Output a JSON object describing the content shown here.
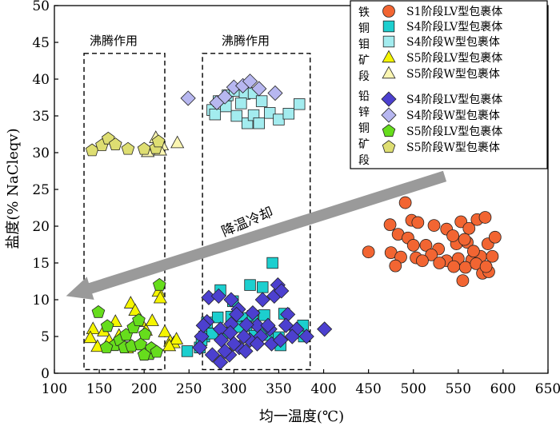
{
  "chart_data": {
    "type": "scatter",
    "xlabel": "均一温度(℃)",
    "ylabel": "盐度(% NaCleqv)",
    "xlim": [
      100,
      650
    ],
    "ylim": [
      0,
      50
    ],
    "xticks": [
      100,
      150,
      200,
      250,
      300,
      350,
      400,
      450,
      500,
      550,
      600,
      650
    ],
    "yticks": [
      0,
      5,
      10,
      15,
      20,
      25,
      30,
      35,
      40,
      45,
      50
    ],
    "legend_position": "top-right",
    "legend_groups": [
      {
        "label": "铁铜钼矿段",
        "chars": [
          "铁",
          "铜",
          "钼",
          "矿",
          "段"
        ]
      },
      {
        "label": "铅锌铜矿段",
        "chars": [
          "铅",
          "锌",
          "铜",
          "矿",
          "段"
        ]
      }
    ],
    "annotations": {
      "boiling_1": "沸腾作用",
      "boiling_2": "沸腾作用",
      "arrow_label": "降温冷却"
    },
    "boxes": [
      {
        "x": [
          133,
          223
        ],
        "y": [
          0.5,
          43.5
        ]
      },
      {
        "x": [
          265,
          385
        ],
        "y": [
          0.5,
          43.5
        ]
      }
    ],
    "arrow": {
      "from": [
        535,
        26.8
      ],
      "to": [
        113,
        10.5
      ]
    },
    "series": [
      {
        "name": "S1阶段LV型包裹体",
        "group": 0,
        "marker": "circle",
        "color": "#f26532",
        "points": [
          [
            491,
            23.2
          ],
          [
            498,
            20.8
          ],
          [
            474,
            20.2
          ],
          [
            483,
            18.9
          ],
          [
            494,
            18.4
          ],
          [
            505,
            20.5
          ],
          [
            523,
            20.1
          ],
          [
            537,
            19.6
          ],
          [
            553,
            20.6
          ],
          [
            562,
            19.7
          ],
          [
            571,
            20.9
          ],
          [
            580,
            21.2
          ],
          [
            500,
            17.4
          ],
          [
            514,
            17.4
          ],
          [
            528,
            16.9
          ],
          [
            548,
            17.6
          ],
          [
            560,
            17.8
          ],
          [
            583,
            17.6
          ],
          [
            591,
            18.5
          ],
          [
            475,
            16.4
          ],
          [
            450,
            16.5
          ],
          [
            486,
            15.8
          ],
          [
            503,
            15.7
          ],
          [
            520,
            16.1
          ],
          [
            537,
            15.3
          ],
          [
            550,
            15.6
          ],
          [
            565,
            15.4
          ],
          [
            575,
            15.9
          ],
          [
            588,
            15.9
          ],
          [
            510,
            15.3
          ],
          [
            529,
            15.0
          ],
          [
            545,
            14.5
          ],
          [
            558,
            14.4
          ],
          [
            570,
            14.9
          ],
          [
            480,
            14.6
          ],
          [
            555,
            12.6
          ],
          [
            577,
            13.6
          ],
          [
            584,
            13.8
          ],
          [
            567,
            16.6
          ],
          [
            544,
            18.7
          ],
          [
            557,
            18.2
          ],
          [
            581,
            14.5
          ]
        ]
      },
      {
        "name": "S4阶段LV型包裹体",
        "group": 0,
        "marker": "square",
        "color": "#1ccfcf",
        "points": [
          [
            248,
            3.0
          ],
          [
            262,
            3.5
          ],
          [
            267,
            5.0
          ],
          [
            270,
            6.9
          ],
          [
            282,
            7.6
          ],
          [
            297,
            7.7
          ],
          [
            310,
            7.5
          ],
          [
            321,
            7.8
          ],
          [
            334,
            7.9
          ],
          [
            356,
            8.1
          ],
          [
            377,
            6.5
          ],
          [
            368,
            5.5
          ],
          [
            339,
            5.2
          ],
          [
            350,
            4.9
          ],
          [
            352,
            3.8
          ],
          [
            378,
            5.0
          ],
          [
            293,
            5.5
          ],
          [
            285,
            11.3
          ],
          [
            299,
            9.8
          ],
          [
            318,
            12.0
          ],
          [
            332,
            11.7
          ],
          [
            343,
            15.0
          ],
          [
            314,
            6.4
          ],
          [
            330,
            5.9
          ],
          [
            264,
            4.5
          ],
          [
            306,
            6.3
          ],
          [
            323,
            5.1
          ],
          [
            276,
            5.4
          ]
        ]
      },
      {
        "name": "S4阶段W型包裹体",
        "group": 0,
        "marker": "square",
        "color": "#a3ecef",
        "points": [
          [
            276,
            35.8
          ],
          [
            283,
            37.0
          ],
          [
            293,
            37.8
          ],
          [
            301,
            38.4
          ],
          [
            312,
            38.0
          ],
          [
            322,
            38.1
          ],
          [
            331,
            37.0
          ],
          [
            340,
            35.4
          ],
          [
            350,
            34.5
          ],
          [
            361,
            35.3
          ],
          [
            373,
            36.6
          ],
          [
            315,
            34.0
          ],
          [
            322,
            35.1
          ],
          [
            328,
            34.0
          ],
          [
            303,
            35.0
          ],
          [
            291,
            36.3
          ],
          [
            308,
            36.7
          ],
          [
            279,
            35.2
          ]
        ]
      },
      {
        "name": "S5阶段LV型包裹体",
        "group": 0,
        "marker": "triangle",
        "color": "#f5f500",
        "points": [
          [
            143,
            6.0
          ],
          [
            148,
            3.6
          ],
          [
            155,
            5.7
          ],
          [
            161,
            4.4
          ],
          [
            168,
            7.0
          ],
          [
            172,
            5.1
          ],
          [
            185,
            9.5
          ],
          [
            190,
            8.5
          ],
          [
            196,
            7.0
          ],
          [
            202,
            5.8
          ],
          [
            209,
            7.1
          ],
          [
            216,
            11.1
          ],
          [
            218,
            10.2
          ],
          [
            223,
            5.6
          ],
          [
            229,
            4.3
          ],
          [
            233,
            4.1
          ],
          [
            236,
            4.6
          ],
          [
            228,
            3.7
          ],
          [
            140,
            4.8
          ],
          [
            181,
            3.4
          ],
          [
            209,
            2.9
          ]
        ]
      },
      {
        "name": "S5阶段W型包裹体",
        "group": 0,
        "marker": "triangle",
        "color": "#fbf6b2",
        "points": [
          [
            213,
            32.0
          ],
          [
            214,
            30.8
          ],
          [
            220,
            31.0
          ],
          [
            218,
            30.3
          ],
          [
            204,
            30.1
          ],
          [
            237,
            31.3
          ]
        ]
      },
      {
        "name": "S4阶段LV型包裹体",
        "group": 1,
        "marker": "diamond",
        "color": "#4c40cf",
        "points": [
          [
            272,
            10.3
          ],
          [
            283,
            10.5
          ],
          [
            297,
            10.0
          ],
          [
            305,
            8.7
          ],
          [
            321,
            8.2
          ],
          [
            332,
            10.0
          ],
          [
            345,
            10.5
          ],
          [
            349,
            12.0
          ],
          [
            353,
            11.2
          ],
          [
            360,
            8.0
          ],
          [
            370,
            6.0
          ],
          [
            381,
            5.0
          ],
          [
            358,
            6.5
          ],
          [
            340,
            6.0
          ],
          [
            326,
            6.5
          ],
          [
            314,
            6.6
          ],
          [
            297,
            6.7
          ],
          [
            285,
            6.0
          ],
          [
            270,
            7.0
          ],
          [
            264,
            5.0
          ],
          [
            262,
            3.5
          ],
          [
            276,
            2.5
          ],
          [
            285,
            1.5
          ],
          [
            295,
            2.5
          ],
          [
            306,
            3.5
          ],
          [
            318,
            4.5
          ],
          [
            330,
            5.0
          ],
          [
            342,
            4.0
          ],
          [
            352,
            4.5
          ],
          [
            365,
            5.0
          ],
          [
            300,
            4.0
          ],
          [
            286,
            4.5
          ],
          [
            296,
            5.5
          ],
          [
            311,
            5.0
          ],
          [
            326,
            4.0
          ],
          [
            338,
            6.5
          ],
          [
            290,
            3.0
          ],
          [
            313,
            3.0
          ],
          [
            401,
            6.0
          ],
          [
            303,
            8.0
          ],
          [
            266,
            6.5
          ]
        ]
      },
      {
        "name": "S4阶段W型包裹体",
        "group": 1,
        "marker": "diamond",
        "color": "#b7b7f0",
        "points": [
          [
            249,
            37.4
          ],
          [
            281,
            36.8
          ],
          [
            290,
            37.6
          ],
          [
            300,
            38.9
          ],
          [
            310,
            39.1
          ],
          [
            318,
            39.7
          ],
          [
            328,
            38.7
          ],
          [
            346,
            38.1
          ]
        ]
      },
      {
        "name": "S5阶段LV型包裹体",
        "group": 1,
        "marker": "pentagon",
        "color": "#66dd1c",
        "points": [
          [
            149,
            8.3
          ],
          [
            159,
            6.4
          ],
          [
            167,
            3.8
          ],
          [
            173,
            4.5
          ],
          [
            180,
            5.2
          ],
          [
            188,
            6.2
          ],
          [
            194,
            7.2
          ],
          [
            201,
            5.3
          ],
          [
            206,
            2.6
          ],
          [
            217,
            12.0
          ],
          [
            208,
            3.4
          ],
          [
            178,
            3.5
          ],
          [
            186,
            3.7
          ],
          [
            196,
            3.9
          ],
          [
            214,
            2.9
          ],
          [
            200,
            2.5
          ],
          [
            158,
            3.5
          ]
        ]
      },
      {
        "name": "S5阶段W型包裹体",
        "group": 1,
        "marker": "pentagon",
        "color": "#dede72",
        "points": [
          [
            142,
            30.3
          ],
          [
            153,
            31.0
          ],
          [
            160,
            31.9
          ],
          [
            168,
            31.1
          ],
          [
            182,
            30.5
          ],
          [
            200,
            30.5
          ],
          [
            213,
            30.6
          ],
          [
            216,
            31.5
          ]
        ]
      }
    ]
  }
}
